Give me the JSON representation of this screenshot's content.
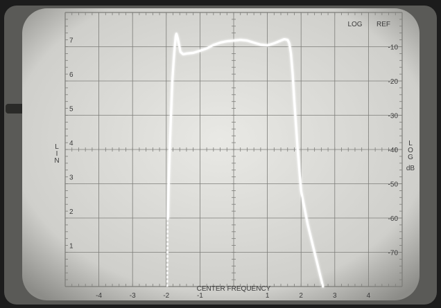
{
  "chart_data": {
    "type": "line",
    "title": "",
    "header_labels": [
      "LOG",
      "REF"
    ],
    "xlabel": "CENTER FREQUENCY",
    "left_axis_label": "LIN",
    "right_axis_label": [
      "LOG",
      "dB"
    ],
    "x_ticks": [
      "-4",
      "-3",
      "-2",
      "-1",
      "1",
      "2",
      "3",
      "4"
    ],
    "y_left_ticks": [
      "1",
      "2",
      "3",
      "4",
      "5",
      "6",
      "7"
    ],
    "y_right_ticks": [
      "-10",
      "-20",
      "-30",
      "-40",
      "-50",
      "-60",
      "-70"
    ],
    "xlim": [
      -5,
      5
    ],
    "ylim": [
      -80,
      0
    ],
    "grid": true,
    "series": [
      {
        "x": [
          -1.98,
          -1.97,
          -1.95,
          -1.93,
          -1.9,
          -1.86,
          -1.82,
          -1.78,
          -1.75,
          -1.72,
          -1.7,
          -1.66,
          -1.62,
          -1.58,
          -1.5,
          -1.4,
          -1.2,
          -1.0,
          -0.8,
          -0.6,
          -0.4,
          -0.2,
          0.0,
          0.2,
          0.4,
          0.6,
          0.8,
          1.0,
          1.2,
          1.4,
          1.5,
          1.6,
          1.65,
          1.7,
          1.75,
          1.8,
          1.9,
          2.0,
          2.2,
          2.4,
          2.55,
          2.65
        ],
        "y": [
          -80,
          -70,
          -60,
          -50,
          -40,
          -30,
          -20,
          -14,
          -10,
          -7,
          -6.2,
          -7.5,
          -9.5,
          -11.5,
          -12.2,
          -12.0,
          -11.8,
          -11.2,
          -10.5,
          -9.5,
          -8.8,
          -8.4,
          -8.2,
          -8.0,
          -8.2,
          -8.8,
          -9.4,
          -9.6,
          -9.0,
          -8.2,
          -7.8,
          -8.0,
          -9.0,
          -12,
          -18,
          -26,
          -40,
          -52,
          -62,
          -70,
          -76,
          -80
        ]
      }
    ]
  }
}
